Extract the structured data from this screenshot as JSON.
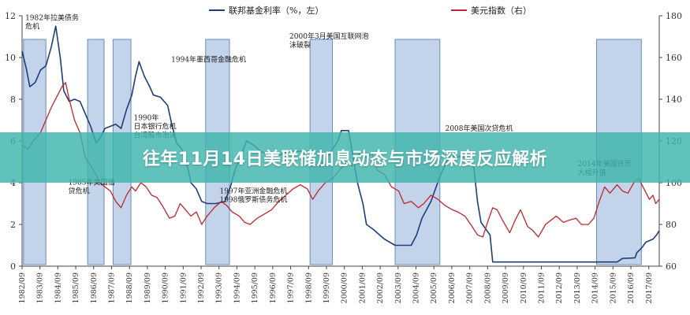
{
  "banner": {
    "title": "往年11月14日美联储加息动态与市场深度反应解析"
  },
  "chart_data": {
    "type": "line",
    "legend": [
      {
        "name": "联邦基金利率（%，左）",
        "color": "#1c3f7a"
      },
      {
        "name": "美元指数（右）",
        "color": "#c0272d"
      }
    ],
    "legend_placement": "top",
    "left_axis": {
      "ylim": [
        0,
        12
      ],
      "ticks": [
        0,
        2,
        4,
        6,
        8,
        10,
        12
      ]
    },
    "right_axis": {
      "ylim": [
        60,
        180
      ],
      "ticks": [
        60,
        80,
        100,
        120,
        140,
        160,
        180
      ]
    },
    "x_range": [
      1982.67,
      2018.25
    ],
    "x_ticks": [
      "1982/09",
      "1983/09",
      "1984/09",
      "1985/09",
      "1986/09",
      "1987/09",
      "1988/09",
      "1989/09",
      "1990/09",
      "1991/09",
      "1992/09",
      "1993/09",
      "1994/09",
      "1995/09",
      "1996/09",
      "1997/09",
      "1998/09",
      "1999/09",
      "2000/09",
      "2001/09",
      "2002/09",
      "2003/09",
      "2004/09",
      "2005/09",
      "2006/09",
      "2007/09",
      "2008/09",
      "2009/09",
      "2010/09",
      "2011/09",
      "2012/09",
      "2013/09",
      "2014/09",
      "2015/09",
      "2016/09",
      "2017/09"
    ],
    "grid": false,
    "shaded_periods": [
      [
        1982.75,
        1984.0
      ],
      [
        1986.33,
        1987.25
      ],
      [
        1987.75,
        1988.75
      ],
      [
        1992.92,
        1994.25
      ],
      [
        1998.75,
        2000.0
      ],
      [
        2003.5,
        2006.0
      ],
      [
        2014.75,
        2017.25
      ]
    ],
    "series": [
      {
        "name": "联邦基金利率（%，左）",
        "axis": "left",
        "color": "#1c3f7a",
        "points": [
          [
            1982.67,
            10.3
          ],
          [
            1982.9,
            9.5
          ],
          [
            1983.1,
            8.6
          ],
          [
            1983.4,
            8.8
          ],
          [
            1983.7,
            9.4
          ],
          [
            1984.0,
            9.6
          ],
          [
            1984.3,
            10.5
          ],
          [
            1984.55,
            11.5
          ],
          [
            1984.8,
            10.0
          ],
          [
            1985.0,
            8.4
          ],
          [
            1985.3,
            7.9
          ],
          [
            1985.6,
            8.0
          ],
          [
            1985.9,
            7.9
          ],
          [
            1986.2,
            7.3
          ],
          [
            1986.5,
            6.7
          ],
          [
            1986.8,
            5.9
          ],
          [
            1987.0,
            6.1
          ],
          [
            1987.3,
            6.6
          ],
          [
            1987.6,
            6.7
          ],
          [
            1987.9,
            6.8
          ],
          [
            1988.2,
            6.6
          ],
          [
            1988.5,
            7.5
          ],
          [
            1988.8,
            8.2
          ],
          [
            1989.0,
            9.1
          ],
          [
            1989.2,
            9.8
          ],
          [
            1989.5,
            9.1
          ],
          [
            1989.8,
            8.6
          ],
          [
            1990.0,
            8.2
          ],
          [
            1990.4,
            8.1
          ],
          [
            1990.8,
            7.7
          ],
          [
            1991.0,
            6.9
          ],
          [
            1991.3,
            5.9
          ],
          [
            1991.6,
            5.6
          ],
          [
            1991.9,
            4.8
          ],
          [
            1992.1,
            4.0
          ],
          [
            1992.4,
            3.7
          ],
          [
            1992.7,
            3.1
          ],
          [
            1993.0,
            3.0
          ],
          [
            1993.5,
            3.0
          ],
          [
            1994.0,
            3.1
          ],
          [
            1994.3,
            3.8
          ],
          [
            1994.6,
            4.7
          ],
          [
            1994.9,
            5.3
          ],
          [
            1995.2,
            6.0
          ],
          [
            1995.6,
            5.8
          ],
          [
            1996.0,
            5.5
          ],
          [
            1996.5,
            5.3
          ],
          [
            1997.0,
            5.3
          ],
          [
            1997.5,
            5.5
          ],
          [
            1998.0,
            5.5
          ],
          [
            1998.7,
            5.5
          ],
          [
            1998.9,
            4.9
          ],
          [
            1999.3,
            4.8
          ],
          [
            1999.7,
            5.2
          ],
          [
            2000.0,
            5.6
          ],
          [
            2000.3,
            6.0
          ],
          [
            2000.5,
            6.5
          ],
          [
            2000.9,
            6.5
          ],
          [
            2001.1,
            5.5
          ],
          [
            2001.4,
            4.0
          ],
          [
            2001.7,
            3.0
          ],
          [
            2001.9,
            2.0
          ],
          [
            2002.3,
            1.75
          ],
          [
            2002.9,
            1.3
          ],
          [
            2003.5,
            1.0
          ],
          [
            2004.4,
            1.0
          ],
          [
            2004.7,
            1.5
          ],
          [
            2005.0,
            2.3
          ],
          [
            2005.5,
            3.1
          ],
          [
            2006.0,
            4.3
          ],
          [
            2006.5,
            5.25
          ],
          [
            2007.6,
            5.25
          ],
          [
            2007.9,
            4.7
          ],
          [
            2008.1,
            3.1
          ],
          [
            2008.3,
            2.1
          ],
          [
            2008.8,
            1.5
          ],
          [
            2008.95,
            0.2
          ],
          [
            2015.9,
            0.2
          ],
          [
            2016.2,
            0.37
          ],
          [
            2016.9,
            0.4
          ],
          [
            2017.0,
            0.65
          ],
          [
            2017.3,
            0.9
          ],
          [
            2017.5,
            1.15
          ],
          [
            2017.9,
            1.3
          ],
          [
            2018.1,
            1.5
          ],
          [
            2018.25,
            1.7
          ]
        ]
      },
      {
        "name": "美元指数（右）",
        "axis": "right",
        "color": "#c0272d",
        "points": [
          [
            1982.67,
            118
          ],
          [
            1983.0,
            116
          ],
          [
            1983.3,
            120
          ],
          [
            1983.7,
            124
          ],
          [
            1984.0,
            130
          ],
          [
            1984.3,
            136
          ],
          [
            1984.6,
            141
          ],
          [
            1984.9,
            146
          ],
          [
            1985.1,
            148
          ],
          [
            1985.3,
            140
          ],
          [
            1985.6,
            130
          ],
          [
            1985.9,
            124
          ],
          [
            1986.2,
            112
          ],
          [
            1986.5,
            108
          ],
          [
            1986.8,
            104
          ],
          [
            1987.0,
            100
          ],
          [
            1987.3,
            98
          ],
          [
            1987.6,
            96
          ],
          [
            1987.9,
            91
          ],
          [
            1988.2,
            88
          ],
          [
            1988.5,
            94
          ],
          [
            1988.8,
            98
          ],
          [
            1989.0,
            96
          ],
          [
            1989.3,
            100
          ],
          [
            1989.6,
            98
          ],
          [
            1989.9,
            94
          ],
          [
            1990.2,
            93
          ],
          [
            1990.5,
            89
          ],
          [
            1990.9,
            83
          ],
          [
            1991.2,
            84
          ],
          [
            1991.5,
            90
          ],
          [
            1991.8,
            87
          ],
          [
            1992.1,
            84
          ],
          [
            1992.4,
            86
          ],
          [
            1992.7,
            80
          ],
          [
            1993.0,
            84
          ],
          [
            1993.4,
            88
          ],
          [
            1993.8,
            91
          ],
          [
            1994.1,
            89
          ],
          [
            1994.4,
            86
          ],
          [
            1994.8,
            84
          ],
          [
            1995.1,
            81
          ],
          [
            1995.4,
            80
          ],
          [
            1995.8,
            83
          ],
          [
            1996.2,
            85
          ],
          [
            1996.6,
            87
          ],
          [
            1997.0,
            91
          ],
          [
            1997.4,
            94
          ],
          [
            1997.8,
            97
          ],
          [
            1998.2,
            99
          ],
          [
            1998.6,
            97
          ],
          [
            1998.9,
            92
          ],
          [
            1999.2,
            96
          ],
          [
            1999.6,
            100
          ],
          [
            2000.0,
            102
          ],
          [
            2000.4,
            106
          ],
          [
            2000.8,
            110
          ],
          [
            2001.1,
            108
          ],
          [
            2001.5,
            114
          ],
          [
            2001.9,
            112
          ],
          [
            2002.2,
            114
          ],
          [
            2002.5,
            106
          ],
          [
            2002.9,
            104
          ],
          [
            2003.3,
            98
          ],
          [
            2003.7,
            96
          ],
          [
            2004.0,
            90
          ],
          [
            2004.4,
            91
          ],
          [
            2004.8,
            88
          ],
          [
            2005.1,
            90
          ],
          [
            2005.5,
            94
          ],
          [
            2005.9,
            92
          ],
          [
            2006.3,
            89
          ],
          [
            2006.7,
            87
          ],
          [
            2007.0,
            86
          ],
          [
            2007.4,
            84
          ],
          [
            2007.8,
            79
          ],
          [
            2008.1,
            75
          ],
          [
            2008.4,
            74
          ],
          [
            2008.7,
            82
          ],
          [
            2008.95,
            88
          ],
          [
            2009.2,
            87
          ],
          [
            2009.5,
            82
          ],
          [
            2009.9,
            76
          ],
          [
            2010.2,
            82
          ],
          [
            2010.5,
            87
          ],
          [
            2010.9,
            79
          ],
          [
            2011.2,
            77
          ],
          [
            2011.5,
            74
          ],
          [
            2011.9,
            80
          ],
          [
            2012.2,
            82
          ],
          [
            2012.5,
            84
          ],
          [
            2012.9,
            81
          ],
          [
            2013.2,
            82
          ],
          [
            2013.6,
            83
          ],
          [
            2013.9,
            80
          ],
          [
            2014.3,
            80
          ],
          [
            2014.6,
            83
          ],
          [
            2014.9,
            91
          ],
          [
            2015.2,
            98
          ],
          [
            2015.5,
            95
          ],
          [
            2015.9,
            99
          ],
          [
            2016.2,
            96
          ],
          [
            2016.5,
            95
          ],
          [
            2016.9,
            101
          ],
          [
            2017.1,
            102
          ],
          [
            2017.4,
            97
          ],
          [
            2017.7,
            92
          ],
          [
            2017.9,
            94
          ],
          [
            2018.05,
            90
          ],
          [
            2018.25,
            92
          ]
        ]
      }
    ],
    "annotations": [
      {
        "text": "1982年拉美债务",
        "text2": "危机",
        "x": 1982.85,
        "side": "left",
        "y": 11.8
      },
      {
        "text": "1985年美国储",
        "text2": "贷危机",
        "x": 1985.25,
        "side": "left",
        "y": 3.9
      },
      {
        "text": "1990年",
        "text2": "日本银行危机",
        "text3": "台湾股市泡沫",
        "x": 1988.9,
        "side": "left",
        "y": 7.0
      },
      {
        "text": "1994年墨西哥金融危机",
        "x": 1991.0,
        "side": "left",
        "y": 9.8
      },
      {
        "text": "1997年亚洲金融危机",
        "text2": "1998俄罗斯债务危机",
        "x": 1993.7,
        "side": "left",
        "y": 3.5
      },
      {
        "text": "2000年3月美国互联网泡",
        "text2": "沫破裂",
        "x": 1997.6,
        "side": "left",
        "y": 10.9
      },
      {
        "text": "2008年美国次贷危机",
        "x": 2006.3,
        "side": "left",
        "y": 6.5
      },
      {
        "text": "2014年美国货币",
        "text2": "大幅升值",
        "x": 2013.7,
        "side": "left",
        "y": 4.8
      }
    ]
  }
}
